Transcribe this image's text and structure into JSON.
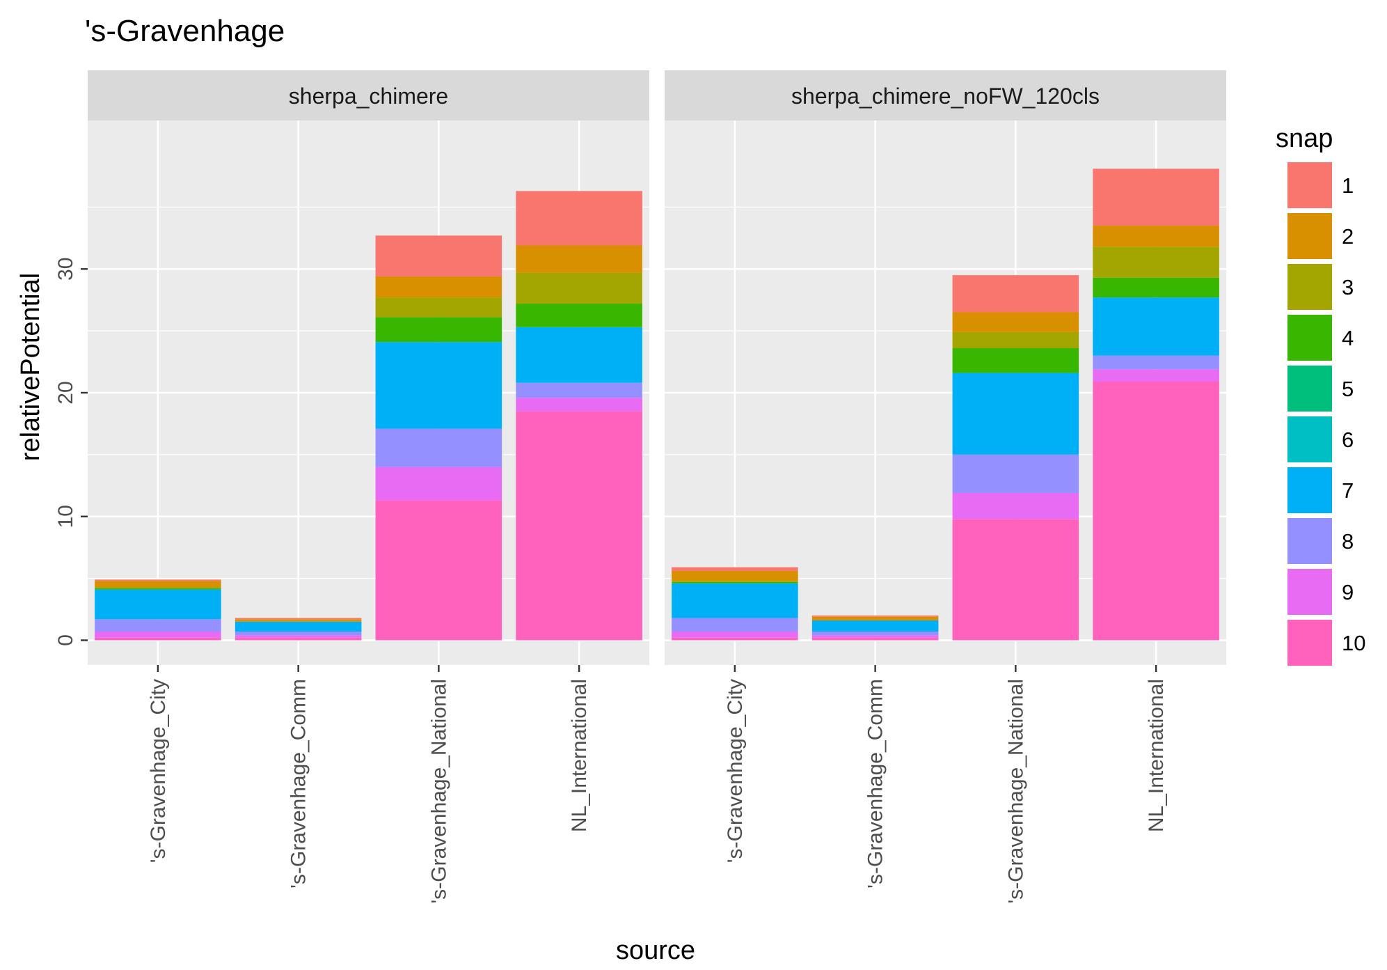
{
  "chart_data": {
    "type": "bar",
    "stacked": true,
    "title": "'s-Gravenhage",
    "xlabel": "source",
    "ylabel": "relativePotential",
    "ylim": [
      -2,
      42
    ],
    "yticks": [
      0,
      10,
      20,
      30
    ],
    "grid": true,
    "legend": {
      "title": "snap",
      "position": "right",
      "entries": [
        "1",
        "2",
        "3",
        "4",
        "5",
        "6",
        "7",
        "8",
        "9",
        "10"
      ],
      "colors": [
        "#F8766D",
        "#D89000",
        "#A3A500",
        "#39B600",
        "#00BF7D",
        "#00BFC4",
        "#00B0F6",
        "#9590FF",
        "#E76BF3",
        "#FF62BC"
      ]
    },
    "categories": [
      "'s-Gravenhage_City",
      "'s-Gravenhage_Comm",
      "'s-Gravenhage_National",
      "NL_International"
    ],
    "panels": [
      {
        "strip": "sherpa_chimere",
        "series": [
          {
            "name": "1",
            "values": [
              0.1,
              0.1,
              3.3,
              4.4
            ]
          },
          {
            "name": "2",
            "values": [
              0.5,
              0.2,
              1.7,
              2.2
            ]
          },
          {
            "name": "3",
            "values": [
              0.1,
              0.0,
              1.6,
              2.5
            ]
          },
          {
            "name": "4",
            "values": [
              0.1,
              0.0,
              2.0,
              1.9
            ]
          },
          {
            "name": "5",
            "values": [
              0.0,
              0.0,
              0.0,
              0.0
            ]
          },
          {
            "name": "6",
            "values": [
              0.0,
              0.0,
              0.0,
              0.0
            ]
          },
          {
            "name": "7",
            "values": [
              2.4,
              0.8,
              7.0,
              4.5
            ]
          },
          {
            "name": "8",
            "values": [
              1.0,
              0.3,
              3.1,
              1.2
            ]
          },
          {
            "name": "9",
            "values": [
              0.5,
              0.2,
              2.7,
              1.1
            ]
          },
          {
            "name": "10",
            "values": [
              0.2,
              0.2,
              11.3,
              18.5
            ]
          }
        ]
      },
      {
        "strip": "sherpa_chimere_noFW_120cls",
        "series": [
          {
            "name": "1",
            "values": [
              0.3,
              0.1,
              3.0,
              4.6
            ]
          },
          {
            "name": "2",
            "values": [
              0.8,
              0.3,
              1.6,
              1.7
            ]
          },
          {
            "name": "3",
            "values": [
              0.1,
              0.0,
              1.3,
              2.5
            ]
          },
          {
            "name": "4",
            "values": [
              0.1,
              0.0,
              2.0,
              1.6
            ]
          },
          {
            "name": "5",
            "values": [
              0.0,
              0.0,
              0.0,
              0.0
            ]
          },
          {
            "name": "6",
            "values": [
              0.0,
              0.0,
              0.0,
              0.0
            ]
          },
          {
            "name": "7",
            "values": [
              2.8,
              0.9,
              6.6,
              4.7
            ]
          },
          {
            "name": "8",
            "values": [
              1.1,
              0.3,
              3.1,
              1.1
            ]
          },
          {
            "name": "9",
            "values": [
              0.5,
              0.2,
              2.1,
              1.0
            ]
          },
          {
            "name": "10",
            "values": [
              0.2,
              0.2,
              9.8,
              20.9
            ]
          }
        ]
      }
    ]
  }
}
